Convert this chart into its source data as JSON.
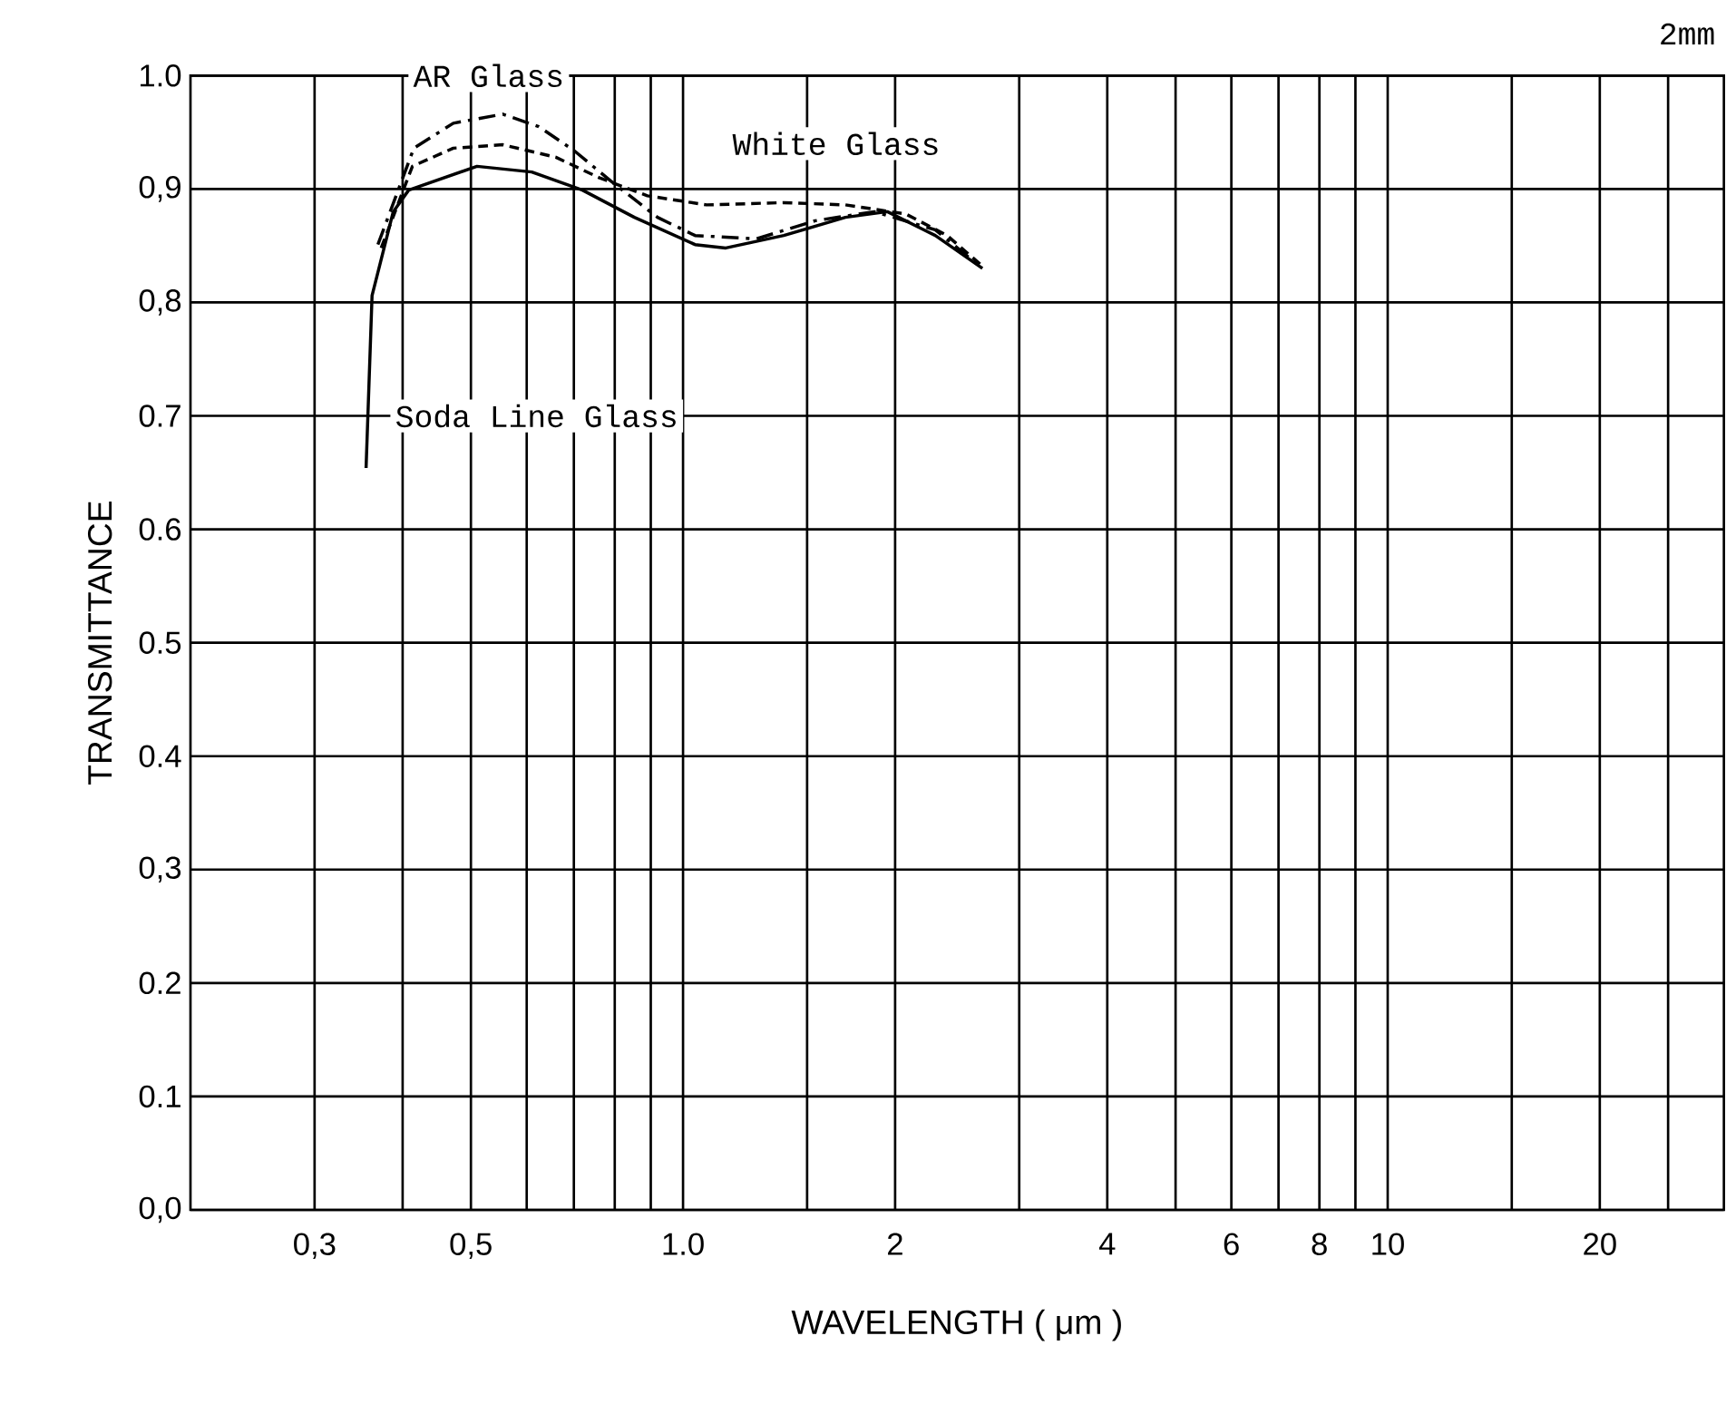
{
  "chart_data": {
    "type": "line",
    "xlabel": "WAVELENGTH ( μm )",
    "ylabel": "TRANSMITTANCE",
    "log": "x",
    "grid": true,
    "marker": "none",
    "annotations": [
      "2mm"
    ],
    "xlim": [
      0.2,
      30
    ],
    "ylim": [
      0,
      1.0
    ],
    "xticks": [
      {
        "value": 0.3,
        "label": "0,3"
      },
      {
        "value": 0.4,
        "label": null
      },
      {
        "value": 0.5,
        "label": "0,5"
      },
      {
        "value": 0.6,
        "label": null
      },
      {
        "value": 0.7,
        "label": null
      },
      {
        "value": 0.8,
        "label": null
      },
      {
        "value": 0.9,
        "label": null
      },
      {
        "value": 1.0,
        "label": "1.0"
      },
      {
        "value": 1.5,
        "label": null
      },
      2,
      {
        "value": 3,
        "label": null
      },
      4,
      {
        "value": 5,
        "label": null
      },
      6,
      {
        "value": 7,
        "label": null
      },
      8,
      {
        "value": 9,
        "label": null
      },
      10,
      {
        "value": 15,
        "label": null
      },
      20,
      {
        "value": 25,
        "label": null
      }
    ],
    "yticks": [
      {
        "value": 0.0,
        "label": "0,0"
      },
      0.1,
      0.2,
      {
        "value": 0.3,
        "label": "0,3"
      },
      0.4,
      0.5,
      0.6,
      0.7,
      {
        "value": 0.8,
        "label": "0,8"
      },
      {
        "value": 0.9,
        "label": "0,9"
      },
      {
        "value": 1.0,
        "label": "1.0"
      }
    ],
    "series": [
      {
        "name": "AR Glass",
        "color": "#000000",
        "line_style": "dashed",
        "x": [
          0.369,
          0.415,
          0.472,
          0.555,
          0.624,
          0.7,
          0.79,
          0.92,
          1.04,
          1.27,
          1.54,
          1.87,
          2.28,
          2.66
        ],
        "values": [
          0.851,
          0.936,
          0.958,
          0.966,
          0.955,
          0.934,
          0.907,
          0.875,
          0.859,
          0.856,
          0.872,
          0.88,
          0.864,
          0.83
        ]
      },
      {
        "name": "White Glass",
        "color": "#000000",
        "line_style": "dotted",
        "x": [
          0.373,
          0.413,
          0.472,
          0.555,
          0.66,
          0.76,
          0.89,
          1.08,
          1.39,
          1.7,
          2.07,
          2.37,
          2.66
        ],
        "values": [
          0.848,
          0.92,
          0.936,
          0.939,
          0.928,
          0.91,
          0.894,
          0.886,
          0.888,
          0.886,
          0.878,
          0.859,
          0.832
        ]
      },
      {
        "name": "Soda Line Glass",
        "color": "#000000",
        "line_style": "solid",
        "x": [
          0.355,
          0.362,
          0.388,
          0.408,
          0.51,
          0.61,
          0.72,
          0.853,
          1.04,
          1.15,
          1.39,
          1.7,
          1.95,
          2.28,
          2.66
        ],
        "values": [
          0.654,
          0.806,
          0.88,
          0.899,
          0.92,
          0.915,
          0.899,
          0.875,
          0.851,
          0.848,
          0.859,
          0.875,
          0.88,
          0.859,
          0.83
        ]
      }
    ]
  }
}
